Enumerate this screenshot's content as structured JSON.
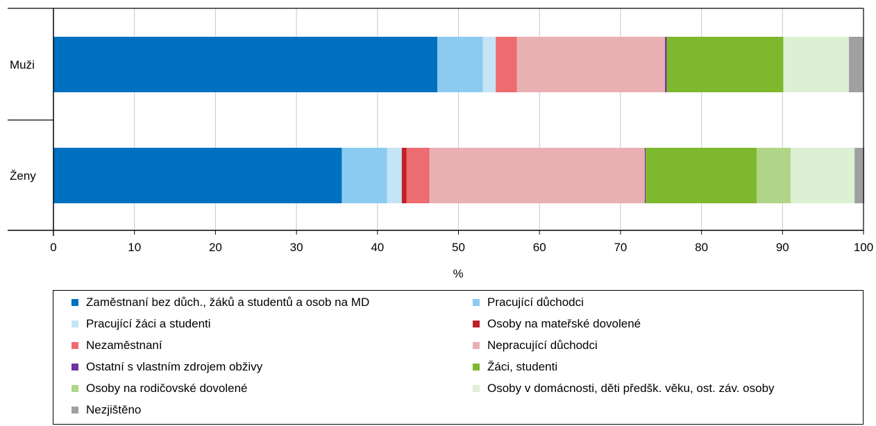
{
  "chart_data": {
    "type": "bar",
    "orientation": "horizontal",
    "stacked": true,
    "categories": [
      "Muži",
      "Ženy"
    ],
    "xlabel": "%",
    "xlim": [
      0,
      100
    ],
    "x_ticks": [
      0,
      10,
      20,
      30,
      40,
      50,
      60,
      70,
      80,
      90,
      100
    ],
    "grid": true,
    "legend_position": "bottom",
    "series": [
      {
        "name": "Zaměstnaní bez důch., žáků a studentů a osob na MD",
        "color": "#0070c0",
        "values": [
          47.4,
          35.6
        ]
      },
      {
        "name": "Pracující důchodci",
        "color": "#8ccbf0",
        "values": [
          5.6,
          5.6
        ]
      },
      {
        "name": "Pracující žáci a studenti",
        "color": "#c5e4f6",
        "values": [
          1.6,
          1.8
        ]
      },
      {
        "name": "Osoby na mateřské dovolené",
        "color": "#c0202a",
        "values": [
          0.0,
          0.6
        ]
      },
      {
        "name": "Nezaměstnaní",
        "color": "#ec6c70",
        "values": [
          2.6,
          2.8
        ]
      },
      {
        "name": "Nepracující důchodci",
        "color": "#e8b0b3",
        "values": [
          18.3,
          26.6
        ]
      },
      {
        "name": "Ostatní s vlastním zdrojem obživy",
        "color": "#7030a0",
        "values": [
          0.2,
          0.1
        ]
      },
      {
        "name": "Žáci, studenti",
        "color": "#7db82d",
        "values": [
          14.4,
          13.7
        ]
      },
      {
        "name": "Osoby na rodičovské dovolené",
        "color": "#b0d589",
        "values": [
          0.0,
          4.2
        ]
      },
      {
        "name": "Osoby v domácnosti, děti předšk. věku, ost. záv. osoby",
        "color": "#ddf0d3",
        "values": [
          8.1,
          7.9
        ]
      },
      {
        "name": "Nezjištěno",
        "color": "#a0a0a0",
        "values": [
          1.8,
          1.2
        ]
      }
    ]
  }
}
